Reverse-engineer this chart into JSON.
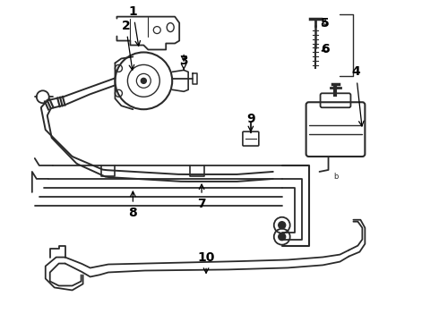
{
  "bg_color": "#ffffff",
  "lc": "#2a2a2a",
  "figsize": [
    4.9,
    3.6
  ],
  "dpi": 100,
  "xlim": [
    0,
    490
  ],
  "ylim": [
    0,
    360
  ]
}
